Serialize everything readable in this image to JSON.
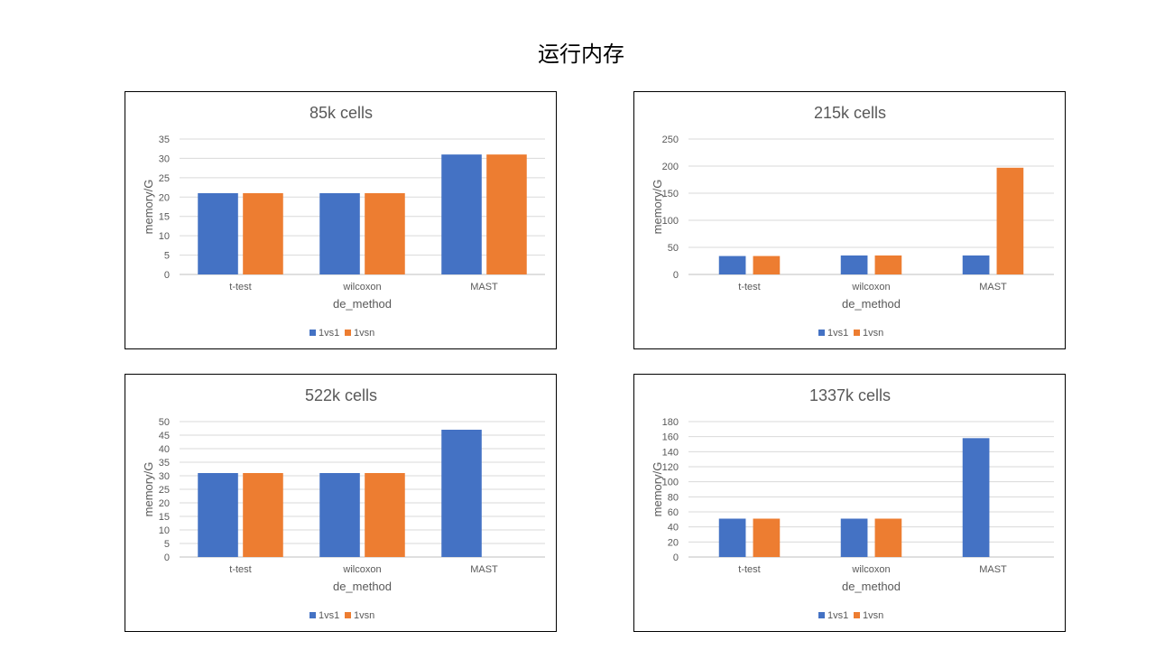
{
  "page_title": "运行内存",
  "chart_data": [
    {
      "type": "bar",
      "title": "85k cells",
      "xlabel": "de_method",
      "ylabel": "memory/G",
      "categories": [
        "t-test",
        "wilcoxon",
        "MAST"
      ],
      "series": [
        {
          "name": "1vs1",
          "color": "#4472C4",
          "values": [
            21,
            21,
            31
          ]
        },
        {
          "name": "1vsn",
          "color": "#ED7D31",
          "values": [
            21,
            21,
            31
          ]
        }
      ],
      "ylim": [
        0,
        35
      ],
      "ystep": 5,
      "grid": true,
      "legend": "bottom"
    },
    {
      "type": "bar",
      "title": "215k cells",
      "xlabel": "de_method",
      "ylabel": "memory/G",
      "categories": [
        "t-test",
        "wilcoxon",
        "MAST"
      ],
      "series": [
        {
          "name": "1vs1",
          "color": "#4472C4",
          "values": [
            34,
            35,
            35
          ]
        },
        {
          "name": "1vsn",
          "color": "#ED7D31",
          "values": [
            34,
            35,
            197
          ]
        }
      ],
      "ylim": [
        0,
        250
      ],
      "ystep": 50,
      "grid": true,
      "legend": "bottom"
    },
    {
      "type": "bar",
      "title": "522k cells",
      "xlabel": "de_method",
      "ylabel": "memory/G",
      "categories": [
        "t-test",
        "wilcoxon",
        "MAST"
      ],
      "series": [
        {
          "name": "1vs1",
          "color": "#4472C4",
          "values": [
            31,
            31,
            47
          ]
        },
        {
          "name": "1vsn",
          "color": "#ED7D31",
          "values": [
            31,
            31,
            0
          ]
        }
      ],
      "ylim": [
        0,
        50
      ],
      "ystep": 5,
      "grid": true,
      "legend": "bottom"
    },
    {
      "type": "bar",
      "title": "1337k cells",
      "xlabel": "de_method",
      "ylabel": "memory/G",
      "categories": [
        "t-test",
        "wilcoxon",
        "MAST"
      ],
      "series": [
        {
          "name": "1vs1",
          "color": "#4472C4",
          "values": [
            51,
            51,
            158
          ]
        },
        {
          "name": "1vsn",
          "color": "#ED7D31",
          "values": [
            51,
            51,
            0
          ]
        }
      ],
      "ylim": [
        0,
        180
      ],
      "ystep": 20,
      "grid": true,
      "legend": "bottom"
    }
  ]
}
